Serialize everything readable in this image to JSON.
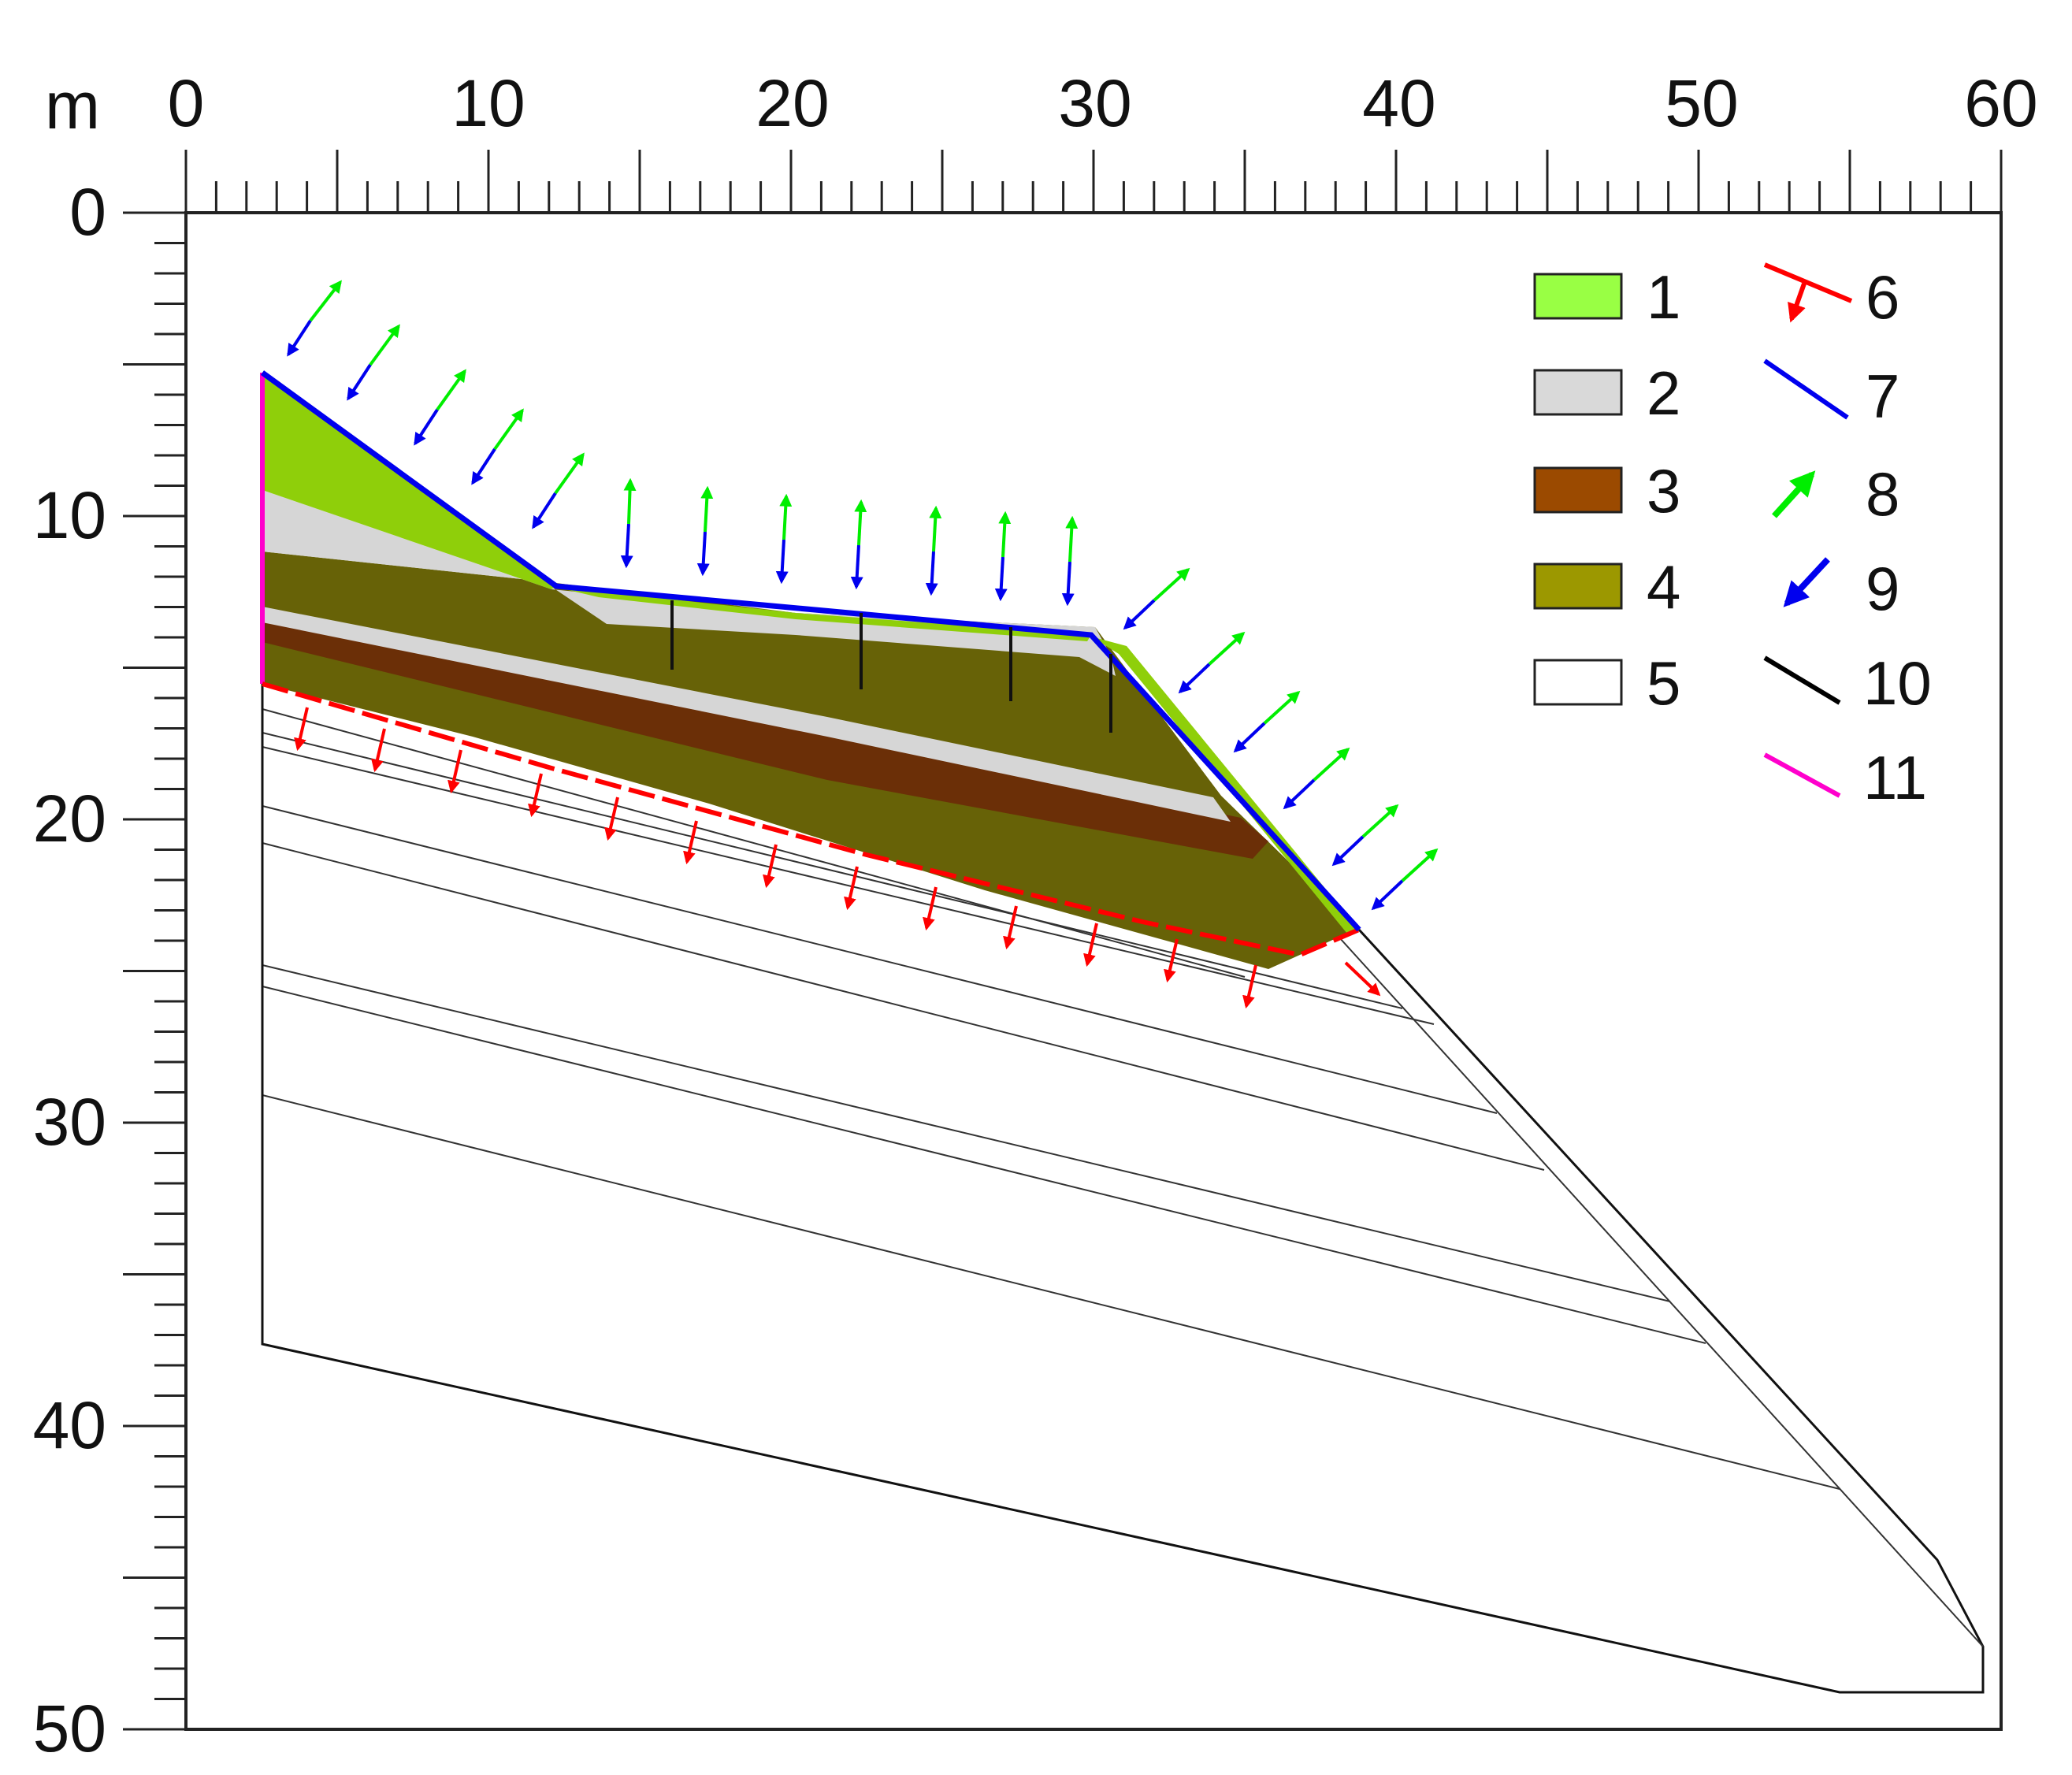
{
  "axes": {
    "unit": "m",
    "x_labels": [
      "0",
      "10",
      "20",
      "30",
      "40",
      "50",
      "60"
    ],
    "y_labels": [
      "0",
      "10",
      "20",
      "30",
      "40",
      "50"
    ],
    "x_range": [
      0,
      60
    ],
    "y_range": [
      0,
      50
    ]
  },
  "legend": [
    {
      "id": "1",
      "label": "1",
      "kind": "swatch",
      "color": "#99ff44"
    },
    {
      "id": "2",
      "label": "2",
      "kind": "swatch",
      "color": "#d9d9d9"
    },
    {
      "id": "3",
      "label": "3",
      "kind": "swatch",
      "color": "#9b4a00"
    },
    {
      "id": "4",
      "label": "4",
      "kind": "swatch",
      "color": "#9c9800"
    },
    {
      "id": "5",
      "label": "5",
      "kind": "swatch",
      "color": "#ffffff"
    },
    {
      "id": "6",
      "label": "6",
      "kind": "red-boundary-arrow",
      "color": "#ff0000"
    },
    {
      "id": "7",
      "label": "7",
      "kind": "line",
      "color": "#0000ee"
    },
    {
      "id": "8",
      "label": "8",
      "kind": "arrow-up",
      "color": "#00ee00"
    },
    {
      "id": "9",
      "label": "9",
      "kind": "arrow-down",
      "color": "#0000ee"
    },
    {
      "id": "10",
      "label": "10",
      "kind": "line",
      "color": "#000000"
    },
    {
      "id": "11",
      "label": "11",
      "kind": "line",
      "color": "#ff00cc"
    }
  ],
  "colors": {
    "layer1": "#99ff44",
    "layer1_shade": "#8fcf0a",
    "layer2": "#d6d6d6",
    "layer3": "#6b2f07",
    "layer4": "#676207",
    "surface_line": "#0000ee",
    "green_arrow": "#00ee00",
    "blue_arrow": "#0000ee",
    "red_boundary": "#ff0000",
    "magenta_line": "#ff00cc",
    "thin_line": "#333333"
  }
}
